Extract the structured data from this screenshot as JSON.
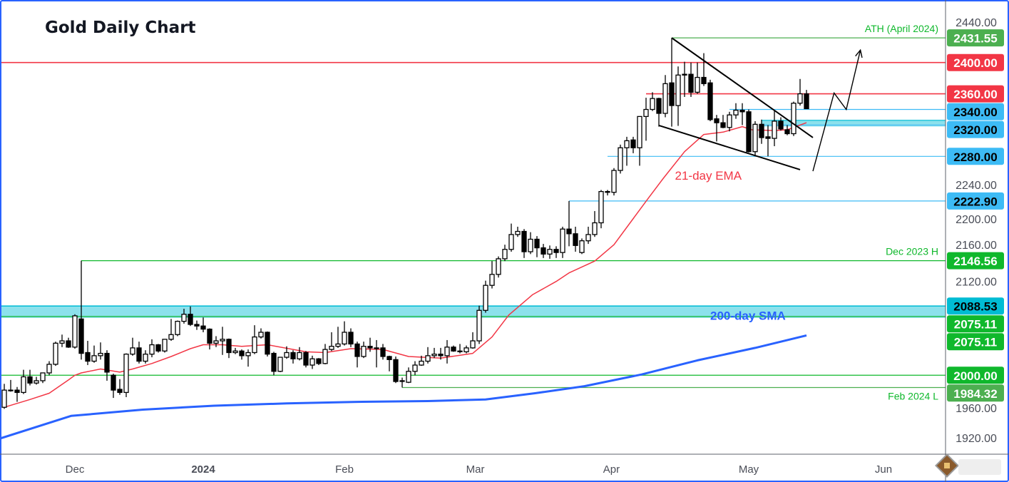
{
  "chart_data": {
    "type": "candlestick",
    "title": "Gold Daily Chart",
    "y_axis": {
      "min": 1900,
      "max": 2450,
      "ticks": [
        1920,
        1960,
        2000,
        2040,
        2080,
        2120,
        2160,
        2200,
        2240,
        2280,
        2320,
        2360,
        2400,
        2440
      ],
      "side": "right"
    },
    "x_ticks": [
      {
        "label": "Dec",
        "index": 11,
        "bold": false
      },
      {
        "label": "2024",
        "index": 31,
        "bold": true
      },
      {
        "label": "Feb",
        "index": 53,
        "bold": false
      },
      {
        "label": "Mar",
        "index": 73.4,
        "bold": false
      },
      {
        "label": "Apr",
        "index": 94.6,
        "bold": false
      },
      {
        "label": "May",
        "index": 116,
        "bold": false
      },
      {
        "label": "Jun",
        "index": 137,
        "bold": false
      }
    ],
    "candles_ohlc": [
      [
        1959,
        1989,
        1957,
        1981
      ],
      [
        1981,
        1994,
        1979,
        1981
      ],
      [
        1981,
        1985,
        1966,
        1978
      ],
      [
        1978,
        2007,
        1976,
        1998
      ],
      [
        1998,
        2007,
        1987,
        1990
      ],
      [
        1990,
        1998,
        1988,
        1993
      ],
      [
        1993,
        2003,
        1990,
        2003
      ],
      [
        2003,
        2018,
        2000,
        2014
      ],
      [
        2014,
        2043,
        2012,
        2041
      ],
      [
        2041,
        2052,
        2036,
        2044
      ],
      [
        2044,
        2048,
        2035,
        2036
      ],
      [
        2036,
        2078,
        2034,
        2076
      ],
      [
        2072,
        2146.56,
        2020,
        2028
      ],
      [
        2029,
        2044,
        2013,
        2018
      ],
      [
        2018,
        2038,
        2016,
        2025
      ],
      [
        2025,
        2042,
        2020,
        2028
      ],
      [
        2028,
        2032,
        1993,
        2004
      ],
      [
        2000,
        2002,
        1971,
        1981
      ],
      [
        1982,
        1995,
        1975,
        1978
      ],
      [
        1978,
        2028,
        1972,
        2027
      ],
      [
        2027,
        2048,
        2025,
        2035
      ],
      [
        2035,
        2043,
        2015,
        2018
      ],
      [
        2018,
        2032,
        2015,
        2027
      ],
      [
        2027,
        2046,
        2023,
        2039
      ],
      [
        2039,
        2040,
        2029,
        2031
      ],
      [
        2031,
        2046,
        2029,
        2046
      ],
      [
        2046,
        2072,
        2044,
        2052
      ],
      [
        2052,
        2070,
        2050,
        2069
      ],
      [
        2069,
        2085,
        2066,
        2078
      ],
      [
        2078,
        2088,
        2063,
        2065
      ],
      [
        2065,
        2070,
        2058,
        2063
      ],
      [
        2063,
        2074,
        2055,
        2059
      ],
      [
        2059,
        2060,
        2033,
        2041
      ],
      [
        2041,
        2050,
        2036,
        2044
      ],
      [
        2044,
        2062,
        2026,
        2046
      ],
      [
        2046,
        2047,
        2022,
        2029
      ],
      [
        2029,
        2035,
        2027,
        2031
      ],
      [
        2031,
        2033,
        2020,
        2025
      ],
      [
        2025,
        2033,
        2011,
        2029
      ],
      [
        2029,
        2064,
        2027,
        2049
      ],
      [
        2049,
        2060,
        2047,
        2055
      ],
      [
        2055,
        2056,
        2024,
        2027
      ],
      [
        2028,
        2030,
        2000,
        2005
      ],
      [
        2005,
        2023,
        2004,
        2023
      ],
      [
        2023,
        2037,
        2021,
        2029
      ],
      [
        2029,
        2032,
        2015,
        2021
      ],
      [
        2021,
        2036,
        2019,
        2029
      ],
      [
        2029,
        2031,
        2010,
        2013
      ],
      [
        2013,
        2025,
        2008,
        2021
      ],
      [
        2021,
        2022,
        2013,
        2015
      ],
      [
        2015,
        2040,
        2014,
        2033
      ],
      [
        2033,
        2055,
        2031,
        2037
      ],
      [
        2037,
        2062,
        2035,
        2040
      ],
      [
        2040,
        2069,
        2038,
        2055
      ],
      [
        2055,
        2060,
        2036,
        2040
      ],
      [
        2040,
        2043,
        2010,
        2024
      ],
      [
        2024,
        2043,
        2022,
        2037
      ],
      [
        2037,
        2048,
        2030,
        2035
      ],
      [
        2035,
        2045,
        2010,
        2035
      ],
      [
        2035,
        2040,
        2020,
        2024
      ],
      [
        2024,
        2025,
        2005,
        2020
      ],
      [
        2020,
        2024,
        1990,
        1992
      ],
      [
        1993,
        1997,
        1984.32,
        1993
      ],
      [
        1991,
        2010,
        1990,
        2005
      ],
      [
        2005,
        2018,
        2000,
        2013
      ],
      [
        2013,
        2025,
        2012,
        2018
      ],
      [
        2018,
        2036,
        2015,
        2025
      ],
      [
        2025,
        2035,
        2022,
        2027
      ],
      [
        2027,
        2035,
        2020,
        2025
      ],
      [
        2025,
        2045,
        2015,
        2036
      ],
      [
        2036,
        2038,
        2030,
        2031
      ],
      [
        2031,
        2040,
        2028,
        2031
      ],
      [
        2030,
        2038,
        2028,
        2035
      ],
      [
        2035,
        2055,
        2034,
        2044
      ],
      [
        2044,
        2089,
        2040,
        2083
      ],
      [
        2083,
        2121,
        2080,
        2115
      ],
      [
        2115,
        2146,
        2111,
        2129
      ],
      [
        2129,
        2152,
        2125,
        2149
      ],
      [
        2149,
        2167,
        2146,
        2161
      ],
      [
        2161,
        2194,
        2158,
        2180
      ],
      [
        2180,
        2190,
        2177,
        2184
      ],
      [
        2184,
        2187,
        2150,
        2158
      ],
      [
        2158,
        2183,
        2155,
        2174
      ],
      [
        2174,
        2178,
        2151,
        2163
      ],
      [
        2163,
        2168,
        2150,
        2155
      ],
      [
        2155,
        2166,
        2149,
        2161
      ],
      [
        2161,
        2165,
        2150,
        2157
      ],
      [
        2157,
        2190,
        2150,
        2187
      ],
      [
        2187,
        2222.9,
        2165,
        2181
      ],
      [
        2181,
        2190,
        2158,
        2166
      ],
      [
        2157,
        2175,
        2155,
        2172
      ],
      [
        2172,
        2190,
        2168,
        2180
      ],
      [
        2180,
        2210,
        2177,
        2195
      ],
      [
        2195,
        2237,
        2188,
        2235
      ],
      [
        2235,
        2237,
        2230,
        2234
      ],
      [
        2234,
        2265,
        2230,
        2262
      ],
      [
        2262,
        2295,
        2258,
        2291
      ],
      [
        2291,
        2305,
        2268,
        2300
      ],
      [
        2301,
        2305,
        2284,
        2291
      ],
      [
        2291,
        2331,
        2268,
        2331
      ],
      [
        2331,
        2355,
        2300,
        2340
      ],
      [
        2340,
        2362,
        2338,
        2354
      ],
      [
        2354,
        2355,
        2318,
        2335
      ],
      [
        2335,
        2384,
        2330,
        2373
      ],
      [
        2374,
        2431.55,
        2318,
        2345
      ],
      [
        2345,
        2395,
        2319,
        2384
      ],
      [
        2384,
        2401,
        2356,
        2385
      ],
      [
        2385,
        2400,
        2356,
        2362
      ],
      [
        2362,
        2400,
        2360,
        2381
      ],
      [
        2381,
        2412,
        2370,
        2373
      ],
      [
        2374,
        2378,
        2325,
        2327
      ],
      [
        2328,
        2333,
        2299,
        2323
      ],
      [
        2323,
        2333,
        2316,
        2317
      ],
      [
        2317,
        2337,
        2312,
        2333
      ],
      [
        2333,
        2348,
        2328,
        2339
      ],
      [
        2339,
        2348,
        2320,
        2337
      ],
      [
        2337,
        2340,
        2285,
        2286
      ],
      [
        2286,
        2325,
        2280,
        2321
      ],
      [
        2321,
        2327,
        2296,
        2304
      ],
      [
        2305,
        2320,
        2280,
        2303
      ],
      [
        2303,
        2338,
        2293,
        2325
      ],
      [
        2325,
        2330,
        2313,
        2315
      ],
      [
        2314,
        2320,
        2307,
        2309
      ],
      [
        2309,
        2350,
        2306,
        2348
      ],
      [
        2348,
        2379,
        2345,
        2360
      ],
      [
        2360,
        2365,
        2341,
        2341
      ]
    ],
    "indicators": [
      {
        "name": "21-day EMA",
        "color": "#f23645",
        "points": [
          [
            0,
            1959
          ],
          [
            4,
            1969
          ],
          [
            7,
            1977
          ],
          [
            10,
            1994
          ],
          [
            11,
            2000
          ],
          [
            12,
            2003
          ],
          [
            15,
            2008
          ],
          [
            18,
            2004
          ],
          [
            20,
            2008
          ],
          [
            23,
            2015
          ],
          [
            26,
            2024
          ],
          [
            29,
            2034
          ],
          [
            31,
            2039
          ],
          [
            34,
            2039
          ],
          [
            37,
            2037
          ],
          [
            41,
            2039
          ],
          [
            47,
            2030
          ],
          [
            50,
            2029
          ],
          [
            54,
            2034
          ],
          [
            59,
            2033
          ],
          [
            63,
            2024
          ],
          [
            68,
            2022
          ],
          [
            73,
            2028
          ],
          [
            76,
            2049
          ],
          [
            78.6,
            2077
          ],
          [
            82.3,
            2103
          ],
          [
            86,
            2120
          ],
          [
            88,
            2131
          ],
          [
            92,
            2146
          ],
          [
            95,
            2167
          ],
          [
            100.4,
            2227
          ],
          [
            102.7,
            2252
          ],
          [
            106,
            2286
          ],
          [
            109,
            2308
          ],
          [
            112,
            2311
          ],
          [
            115,
            2318
          ],
          [
            116.5,
            2314
          ],
          [
            120,
            2313
          ],
          [
            122,
            2314
          ],
          [
            125,
            2323
          ]
        ]
      },
      {
        "name": "200-day SMA",
        "color": "#2962ff",
        "points": [
          [
            -0.7,
            1919
          ],
          [
            10.4,
            1948
          ],
          [
            21.6,
            1956
          ],
          [
            32.7,
            1961
          ],
          [
            44,
            1964
          ],
          [
            55,
            1966
          ],
          [
            66,
            1967
          ],
          [
            75,
            1969
          ],
          [
            82.7,
            1977
          ],
          [
            90.4,
            1986
          ],
          [
            99.3,
            2001
          ],
          [
            108,
            2019
          ],
          [
            117,
            2035
          ],
          [
            125,
            2051
          ]
        ]
      }
    ],
    "levels": [
      {
        "value": 2431.55,
        "label": "2431.55",
        "color": "#4caf50",
        "text_color": "#ffffff",
        "from_index": 104,
        "note": "ATH (April 2024)"
      },
      {
        "value": 2400.0,
        "label": "2400.00",
        "color": "#f23645",
        "text_color": "#ffffff",
        "from_index": -1,
        "note": ""
      },
      {
        "value": 2360.0,
        "label": "2360.00",
        "color": "#f23645",
        "text_color": "#ffffff",
        "from_index": 100,
        "note": ""
      },
      {
        "value": 2340.0,
        "label": "2340.00",
        "color": "#3dbbf5",
        "text_color": "#000000",
        "from_index": 113,
        "note": ""
      },
      {
        "value": 2320.0,
        "label": "2320.00",
        "color": "#3dbbf5",
        "text_color": "#000000",
        "from_index": 118,
        "note": ""
      },
      {
        "value": 2280.0,
        "label": "2280.00",
        "color": "#3dbbf5",
        "text_color": "#000000",
        "from_index": 94,
        "note": ""
      },
      {
        "value": 2222.9,
        "label": "2222.90",
        "color": "#3dbbf5",
        "text_color": "#000000",
        "from_index": 88,
        "note": ""
      },
      {
        "value": 2146.56,
        "label": "2146.56",
        "color": "#0fb82c",
        "text_color": "#ffffff",
        "from_index": 12,
        "note": "Dec 2023 H"
      },
      {
        "value": 2088.53,
        "label": "2088.53",
        "color": "#00bcd4",
        "text_color": "#000000",
        "from_index": -1,
        "note": ""
      },
      {
        "value": 2075.11,
        "label": "2075.11",
        "color": "#0fb82c",
        "text_color": "#ffffff",
        "from_index": -1,
        "note": ""
      },
      {
        "value": 2075.11,
        "label": "2075.11",
        "color": "#0fb82c",
        "text_color": "#ffffff",
        "from_index": -1,
        "note": ""
      },
      {
        "value": 2000.0,
        "label": "2000.00",
        "color": "#0fb82c",
        "text_color": "#ffffff",
        "from_index": -1,
        "note": ""
      },
      {
        "value": 1984.32,
        "label": "1984.32",
        "color": "#4caf50",
        "text_color": "#ffffff",
        "from_index": 62,
        "note": "Feb 2024 L"
      }
    ],
    "zones": [
      {
        "from": 2075.11,
        "to": 2088.53,
        "color": "#00bcd4",
        "from_index": -1
      },
      {
        "from": 2320,
        "to": 2326,
        "color": "#00bcd4",
        "from_index": 118
      }
    ],
    "trendlines": [
      {
        "points": [
          [
            104,
            2431.55
          ],
          [
            126,
            2304
          ]
        ],
        "color": "#000000"
      },
      {
        "points": [
          [
            102,
            2319.5
          ],
          [
            124,
            2263
          ]
        ],
        "color": "#000000"
      }
    ],
    "projection": {
      "points": [
        [
          126,
          2261
        ],
        [
          129.3,
          2361
        ],
        [
          131.2,
          2340
        ],
        [
          133.4,
          2416
        ]
      ],
      "color": "#000000"
    },
    "annotations": [
      {
        "text": "21-day EMA",
        "color": "#f23645",
        "index": 104.5,
        "value": 2250,
        "bold": false
      },
      {
        "text": "200-day SMA",
        "color": "#2962ff",
        "index": 110,
        "value": 2071,
        "bold": true
      }
    ],
    "colors": {
      "up_body": "#ffffff",
      "down_body": "#000000",
      "wick": "#000000",
      "axis_text": "#131722"
    }
  }
}
